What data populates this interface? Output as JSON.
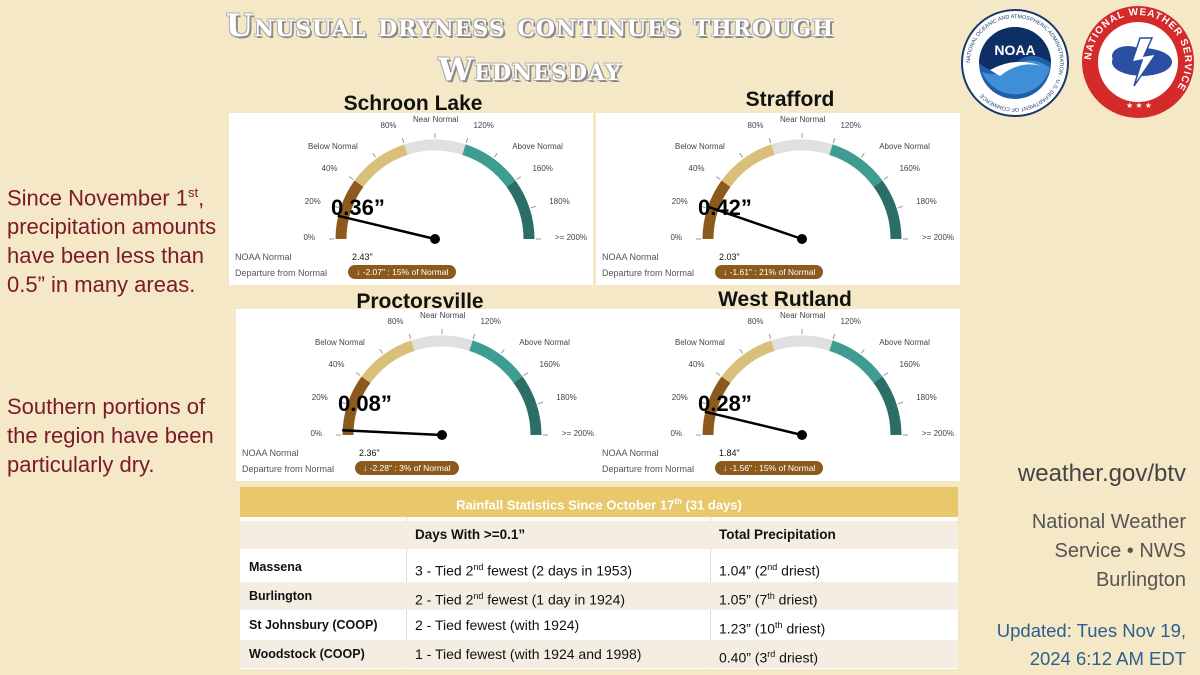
{
  "title": {
    "line1": "Unusual dryness continues through",
    "line2": "Wednesday"
  },
  "logos": {
    "noaa": {
      "name": "NOAA",
      "ring_text": "NATIONAL OCEANIC AND ATMOSPHERIC ADMINISTRATION · U.S. DEPARTMENT OF COMMERCE"
    },
    "nws": {
      "ring_text": "NATIONAL WEATHER SERVICE"
    }
  },
  "left_text": {
    "para1_part1": "Since November 1",
    "para1_sup": "st",
    "para1_part2": ", precipitation amounts have been less than 0.5” in many areas.",
    "para2": "Southern portions of the region have been particularly dry."
  },
  "gauge_ticks": {
    "t0": "0%",
    "t20": "20%",
    "t40": "40%",
    "below": "Below Normal",
    "t80": "80%",
    "near": "Near Normal",
    "t120": "120%",
    "above": "Above Normal",
    "t160": "160%",
    "t180": "180%",
    "t200": ">= 200%"
  },
  "gauge_common": {
    "normal_label": "NOAA Normal",
    "departure_label": "Departure from Normal"
  },
  "gauges": [
    {
      "location": "Schroon Lake",
      "value": "0.36”",
      "percent_of_normal": 15,
      "normal": "2.43\"",
      "departure": "↓  -2.07\" : 15% of Normal"
    },
    {
      "location": "Strafford",
      "value": "0.42”",
      "percent_of_normal": 21,
      "normal": "2.03\"",
      "departure": "↓  -1.61\" : 21% of Normal"
    },
    {
      "location": "Proctorsville",
      "value": "0.08”",
      "percent_of_normal": 3,
      "normal": "2.36\"",
      "departure": "↓  -2.28\" : 3% of Normal"
    },
    {
      "location": "West Rutland",
      "value": "0.28”",
      "percent_of_normal": 15,
      "normal": "1.84\"",
      "departure": "↓  -1.56\" : 15% of Normal"
    }
  ],
  "colors": {
    "gauge_brown": "#8c5a1c",
    "gauge_tan": "#d9c07a",
    "gauge_gray": "#e0e0e0",
    "gauge_teal": "#3f9c93",
    "gauge_dark_teal": "#2a6e67"
  },
  "stats": {
    "heading_pre": "Rainfall Statistics Since October 17",
    "heading_sup": "th",
    "heading_post": " (31 days)",
    "col1": "Days With >=0.1”",
    "col2": "Total Precipitation",
    "rows": [
      {
        "station": "Massena",
        "days_a": "3 - Tied 2",
        "days_sup": "nd",
        "days_b": " fewest (2 days in 1953)",
        "total_a": "1.04” (2",
        "total_sup": "nd",
        "total_b": " driest)"
      },
      {
        "station": "Burlington",
        "days_a": "2 - Tied 2",
        "days_sup": "nd",
        "days_b": " fewest (1 day in 1924)",
        "total_a": "1.05” (7",
        "total_sup": "th",
        "total_b": " driest)"
      },
      {
        "station": "St Johnsbury (COOP)",
        "days_a": "2 - Tied fewest (with 1924)",
        "days_sup": "",
        "days_b": "",
        "total_a": "1.23” (10",
        "total_sup": "th",
        "total_b": " driest)"
      },
      {
        "station": "Woodstock (COOP)",
        "days_a": "1 - Tied fewest (with 1924 and 1998)",
        "days_sup": "",
        "days_b": "",
        "total_a": "0.40” (3",
        "total_sup": "rd",
        "total_b": " driest)"
      }
    ]
  },
  "footer": {
    "site": "weather.gov/btv",
    "org_line1": "National Weather",
    "org_line2": "Service • NWS",
    "org_line3": "Burlington",
    "updated_line1": "Updated: Tues Nov 19,",
    "updated_line2": "2024 6:12 AM EDT"
  }
}
